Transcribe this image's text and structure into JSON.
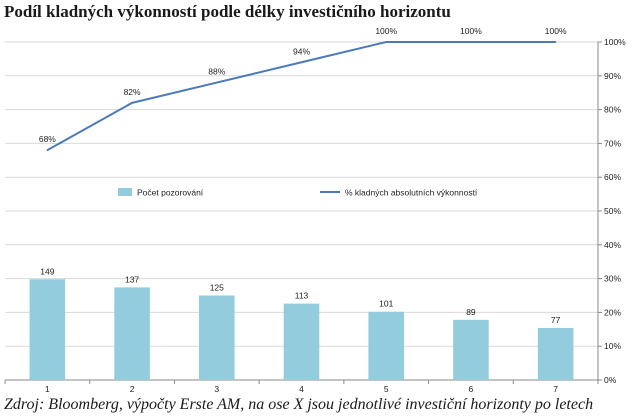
{
  "title": "Podíl kladných výkonností podle délky investičního horizontu",
  "caption": "Zdroj: Bloomberg, výpočty Erste AM, na ose X jsou jednotlivé investiční horizonty po letech",
  "colors": {
    "bar": "#93cddd",
    "line": "#4a7ab8",
    "grid": "#d9d9d9",
    "axis": "#888888"
  },
  "chart_data": {
    "type": "bar",
    "categories": [
      "1",
      "2",
      "3",
      "4",
      "5",
      "6",
      "7"
    ],
    "ylim": [
      0,
      100
    ],
    "y_ticks": [
      "0%",
      "10%",
      "20%",
      "30%",
      "40%",
      "50%",
      "60%",
      "70%",
      "80%",
      "90%",
      "100%"
    ],
    "y_axis_position": "right",
    "grid": true,
    "legend_placement": "middle",
    "series": [
      {
        "name": "Počet pozorování",
        "type": "bar",
        "values": [
          149,
          137,
          125,
          113,
          101,
          89,
          77
        ],
        "value_scale": 0.2,
        "data_labels": [
          "149",
          "137",
          "125",
          "113",
          "101",
          "89",
          "77"
        ]
      },
      {
        "name": "% kladných absolutních výkonností",
        "type": "line",
        "values": [
          68,
          82,
          88,
          94,
          100,
          100,
          100
        ],
        "data_labels": [
          "68%",
          "82%",
          "88%",
          "94%",
          "100%",
          "100%",
          "100%"
        ]
      }
    ]
  }
}
